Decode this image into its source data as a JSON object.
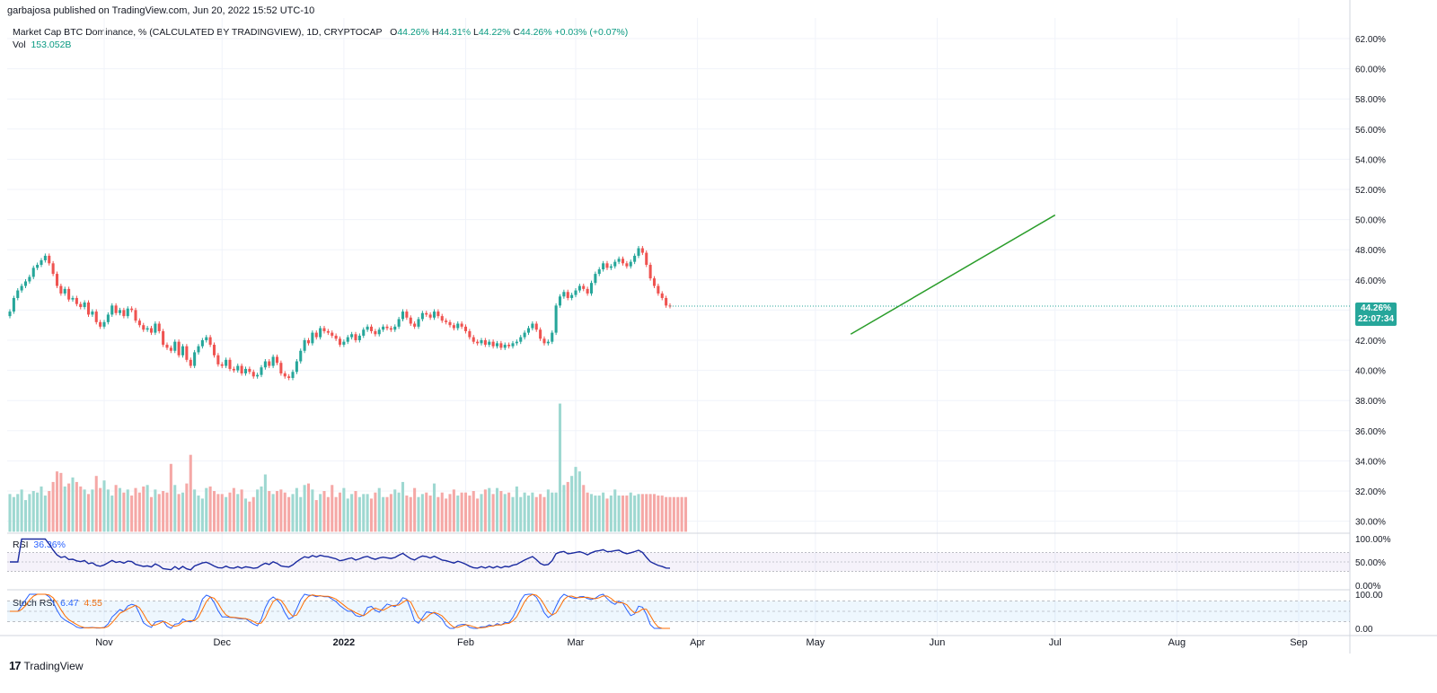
{
  "header": {
    "publisher": "garbajosa published on TradingView.com, Jun 20, 2022 15:52 UTC-10"
  },
  "legend": {
    "title": "Market Cap BTC Dominance, % (CALCULATED BY TRADINGVIEW), 1D, CRYPTOCAP",
    "o_label": "O",
    "o": "44.26%",
    "h_label": "H",
    "h": "44.31%",
    "l_label": "L",
    "l": "44.22%",
    "c_label": "C",
    "c": "44.26%",
    "change": "+0.03% (+0.07%)",
    "vol_label": "Vol",
    "vol": "153.052B"
  },
  "rsi": {
    "label": "RSI",
    "value": "36.36%"
  },
  "stoch": {
    "label": "Stoch RSI",
    "k": "6.47",
    "d": "4.55"
  },
  "price_badge": {
    "value": "44.26%",
    "countdown": "22:07:34"
  },
  "brand": {
    "text": "TradingView",
    "logo": "17"
  },
  "colors": {
    "up": "#26a69a",
    "down": "#ef5350",
    "vol_up": "#9ed8d1",
    "vol_down": "#f5a8a6",
    "rsi": "#1a2aa0",
    "trend": "#2a9d2a"
  },
  "chart_data": {
    "type": "candlestick",
    "title": "Market Cap BTC Dominance, % (CALCULATED BY TRADINGVIEW), 1D, CRYPTOCAP",
    "ylim": [
      29,
      63
    ],
    "y_ticks": [
      "62.00%",
      "60.00%",
      "58.00%",
      "56.00%",
      "54.00%",
      "52.00%",
      "50.00%",
      "48.00%",
      "46.00%",
      "44.00%",
      "42.00%",
      "40.00%",
      "38.00%",
      "36.00%",
      "34.00%",
      "32.00%",
      "30.00%"
    ],
    "x_ticks": [
      "Nov",
      "Dec",
      "2022",
      "Feb",
      "Mar",
      "Apr",
      "May",
      "Jun",
      "Jul",
      "Aug",
      "Sep"
    ],
    "rsi_ticks": [
      "100.00%",
      "50.00%",
      "0.00%"
    ],
    "stoch_ticks": [
      "100.00",
      "0.00"
    ],
    "start_date": "2021-10-08",
    "closes": [
      43.9,
      44.8,
      45.3,
      45.6,
      45.9,
      46.2,
      46.8,
      47.0,
      47.3,
      47.6,
      47.1,
      46.4,
      45.6,
      45.1,
      45.4,
      44.7,
      44.8,
      44.4,
      44.2,
      44.5,
      43.7,
      43.9,
      43.2,
      42.9,
      43.2,
      43.7,
      44.3,
      43.8,
      44.0,
      43.6,
      44.1,
      44.0,
      43.3,
      43.0,
      42.7,
      42.8,
      42.5,
      43.1,
      42.6,
      41.7,
      41.5,
      41.3,
      41.9,
      41.0,
      41.6,
      40.7,
      40.3,
      41.2,
      41.6,
      42.0,
      42.2,
      41.7,
      41.0,
      40.4,
      40.3,
      40.7,
      40.1,
      40.0,
      40.3,
      39.8,
      40.1,
      39.9,
      39.6,
      39.7,
      40.2,
      40.6,
      40.3,
      40.9,
      40.5,
      39.8,
      39.6,
      39.5,
      39.9,
      40.6,
      41.3,
      42.0,
      41.8,
      42.5,
      42.2,
      42.8,
      42.6,
      42.5,
      42.3,
      42.1,
      41.7,
      41.9,
      42.2,
      42.4,
      42.0,
      42.3,
      42.7,
      42.9,
      42.6,
      42.4,
      42.7,
      42.9,
      42.8,
      42.7,
      42.9,
      43.4,
      43.9,
      43.5,
      43.1,
      42.9,
      43.4,
      43.8,
      43.7,
      43.5,
      43.9,
      43.6,
      43.3,
      43.2,
      43.0,
      42.8,
      43.1,
      42.9,
      42.6,
      42.2,
      41.9,
      41.8,
      42.0,
      41.7,
      41.9,
      41.6,
      41.8,
      41.5,
      41.7,
      41.6,
      41.8,
      41.9,
      42.2,
      42.5,
      42.8,
      43.1,
      42.7,
      42.1,
      41.8,
      41.9,
      42.5,
      44.3,
      44.9,
      45.2,
      44.8,
      45.0,
      45.3,
      45.6,
      45.4,
      45.1,
      45.8,
      46.4,
      46.7,
      47.1,
      46.8,
      46.9,
      47.2,
      47.4,
      47.1,
      46.9,
      47.2,
      47.6,
      48.1,
      47.8,
      47.0,
      46.1,
      45.6,
      45.1,
      44.8,
      44.3,
      44.26
    ],
    "volume_values": [
      31.8,
      31.6,
      31.8,
      32.1,
      31.4,
      31.8,
      32.0,
      31.9,
      32.3,
      31.7,
      32.0,
      32.6,
      33.3,
      33.2,
      32.3,
      32.5,
      32.9,
      32.6,
      32.3,
      32.1,
      31.8,
      32.1,
      33.0,
      32.2,
      32.7,
      32.1,
      31.7,
      32.4,
      32.2,
      31.9,
      32.1,
      31.7,
      32.2,
      31.9,
      32.3,
      32.4,
      31.6,
      32.1,
      31.8,
      32.0,
      31.9,
      33.8,
      32.4,
      31.8,
      31.9,
      32.5,
      34.4,
      32.1,
      31.7,
      31.5,
      32.2,
      32.3,
      32.0,
      31.8,
      31.8,
      31.6,
      31.9,
      32.2,
      31.8,
      32.1,
      31.5,
      31.3,
      31.6,
      32.1,
      32.3,
      33.1,
      32.0,
      31.8,
      32.0,
      32.1,
      31.9,
      31.6,
      31.8,
      32.2,
      31.6,
      32.4,
      32.5,
      32.1,
      31.4,
      31.8,
      32.0,
      31.6,
      32.4,
      31.6,
      31.9,
      32.2,
      31.5,
      31.8,
      32.0,
      31.6,
      31.8,
      31.8,
      31.5,
      31.9,
      32.2,
      31.6,
      31.6,
      31.8,
      32.1,
      31.9,
      32.6,
      31.7,
      31.6,
      32.2,
      31.6,
      31.8,
      31.9,
      31.7,
      32.5,
      31.6,
      31.9,
      31.5,
      31.8,
      32.1,
      31.7,
      31.9,
      31.9,
      31.7,
      32.0,
      31.5,
      31.8,
      32.1,
      32.2,
      31.8,
      32.2,
      32.0,
      31.8,
      31.9,
      31.6,
      32.3,
      31.6,
      31.9,
      31.7,
      31.9,
      31.6,
      31.8,
      31.6,
      32.1,
      31.9,
      31.9,
      37.8,
      32.4,
      32.6,
      33.0,
      33.6,
      33.3,
      32.4,
      31.9,
      31.8,
      31.7,
      31.7,
      31.9,
      31.5,
      31.7,
      32.1,
      31.7,
      31.7,
      31.7,
      31.9,
      31.7,
      31.8,
      31.8,
      31.8,
      31.8,
      31.8,
      31.7,
      31.7,
      31.6,
      31.6,
      31.6,
      31.6,
      31.6,
      31.6
    ],
    "trend_line": {
      "from": {
        "date": "2022-05-10",
        "value": 42.4
      },
      "to": {
        "date": "2022-07-01",
        "value": 50.3
      }
    },
    "last_price": 44.26
  }
}
